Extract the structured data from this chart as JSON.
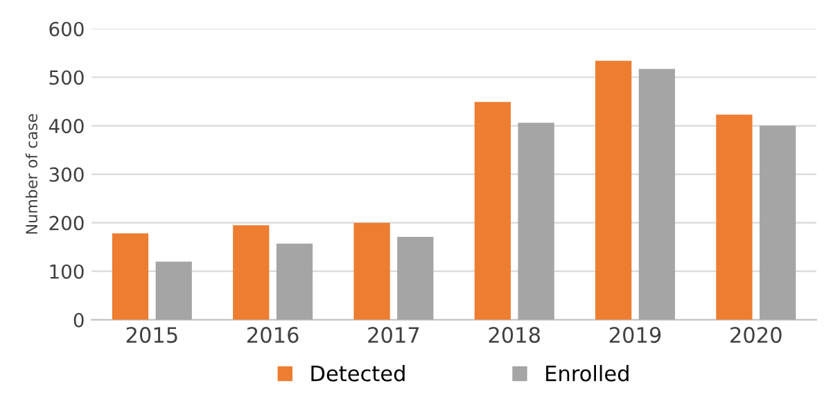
{
  "chart_data": {
    "type": "bar",
    "ylabel": "Number of case",
    "categories": [
      "2015",
      "2016",
      "2017",
      "2018",
      "2019",
      "2020"
    ],
    "series": [
      {
        "name": "Detected",
        "color": "#ed7d31",
        "values": [
          178,
          195,
          200,
          449,
          534,
          423
        ]
      },
      {
        "name": "Enrolled",
        "color": "#a5a5a5",
        "values": [
          120,
          157,
          171,
          406,
          517,
          400
        ]
      }
    ],
    "ylim": [
      0,
      600
    ],
    "yticks": [
      0,
      100,
      200,
      300,
      400,
      500,
      600
    ],
    "grid": "y",
    "legend": "bottom"
  }
}
